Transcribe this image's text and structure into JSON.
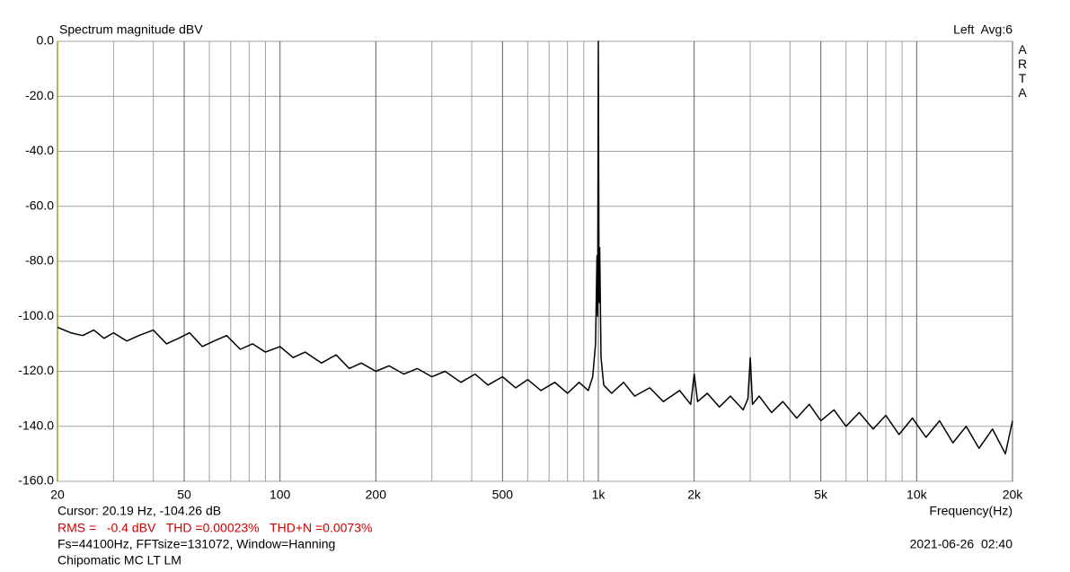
{
  "chart_data": {
    "type": "line",
    "title": "Spectrum magnitude dBV",
    "channel_info": "Left  Avg:6",
    "brand": "ARTA",
    "x_label": "Frequency(Hz)",
    "cursor": "Cursor: 20.19 Hz, -104.26 dB",
    "measurements": "RMS =   -0.4 dBV   THD =0.00023%   THD+N =0.0073%",
    "settings": "Fs=44100Hz, FFTsize=131072, Window=Hanning",
    "device": "Chipomatic MC LT LM",
    "timestamp": "2021-06-26  02:40",
    "xscale": "log",
    "grid": true,
    "color": "#000000",
    "measurements_color": "#cc0000",
    "xlim": [
      20,
      20000
    ],
    "ylim": [
      -160,
      0
    ],
    "xticks": [
      20,
      50,
      100,
      200,
      500,
      {
        "value": 1000,
        "label": "1k"
      },
      {
        "value": 2000,
        "label": "2k"
      },
      {
        "value": 5000,
        "label": "5k"
      },
      {
        "value": 10000,
        "label": "10k"
      },
      {
        "value": 20000,
        "label": "20k"
      }
    ],
    "xminorticks": [
      30,
      40,
      60,
      70,
      80,
      90,
      300,
      400,
      600,
      700,
      800,
      900,
      3000,
      4000,
      6000,
      7000,
      8000,
      9000
    ],
    "yticks": [
      {
        "value": 0,
        "label": "0.0"
      },
      {
        "value": -20,
        "label": "-20.0"
      },
      {
        "value": -40,
        "label": "-40.0"
      },
      {
        "value": -60,
        "label": "-60.0"
      },
      {
        "value": -80,
        "label": "-80.0"
      },
      {
        "value": -100,
        "label": "-100.0"
      },
      {
        "value": -120,
        "label": "-120.0"
      },
      {
        "value": -140,
        "label": "-140.0"
      },
      {
        "value": -160,
        "label": "-160.0"
      }
    ],
    "x": [
      20,
      22,
      24,
      26,
      28,
      30,
      33,
      36,
      40,
      44,
      48,
      52,
      57,
      62,
      68,
      75,
      82,
      90,
      100,
      110,
      120,
      135,
      150,
      165,
      180,
      200,
      220,
      245,
      270,
      300,
      330,
      370,
      410,
      450,
      500,
      550,
      600,
      660,
      730,
      800,
      870,
      930,
      960,
      980,
      990,
      995,
      1000,
      1005,
      1010,
      1020,
      1040,
      1100,
      1200,
      1300,
      1450,
      1600,
      1800,
      1950,
      2000,
      2050,
      2200,
      2400,
      2600,
      2850,
      2950,
      3000,
      3050,
      3200,
      3500,
      3800,
      4200,
      4600,
      5000,
      5500,
      6000,
      6600,
      7300,
      8000,
      8800,
      9700,
      10700,
      11800,
      13000,
      14300,
      15700,
      17300,
      19000,
      20000
    ],
    "values": [
      -104,
      -106,
      -107,
      -105,
      -108,
      -106,
      -109,
      -107,
      -105,
      -110,
      -108,
      -106,
      -111,
      -109,
      -107,
      -112,
      -110,
      -113,
      -111,
      -115,
      -113,
      -117,
      -114,
      -119,
      -117,
      -120,
      -118,
      -121,
      -119,
      -122,
      -120,
      -124,
      -121,
      -125,
      -122,
      -126,
      -123,
      -127,
      -124,
      -128,
      -124,
      -127,
      -122,
      -110,
      -78,
      -100,
      0,
      -95,
      -75,
      -115,
      -125,
      -128,
      -124,
      -129,
      -126,
      -131,
      -127,
      -132,
      -121,
      -131,
      -128,
      -133,
      -129,
      -134,
      -130,
      -115,
      -132,
      -129,
      -135,
      -131,
      -137,
      -132,
      -138,
      -134,
      -140,
      -135,
      -141,
      -136,
      -143,
      -137,
      -144,
      -138,
      -146,
      -140,
      -148,
      -141,
      -150,
      -138
    ]
  }
}
